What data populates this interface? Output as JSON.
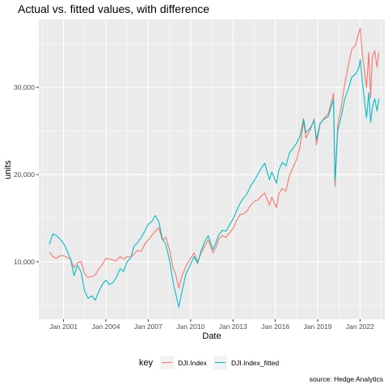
{
  "chart_data": {
    "type": "line",
    "title": "Actual vs. fitted values, with difference",
    "xlabel": "Date",
    "ylabel": "units",
    "caption": "source: Hedge Analytics",
    "x_ticks": [
      "Jan 2001",
      "Jan 2004",
      "Jan 2007",
      "Jan 2010",
      "Jan 2013",
      "Jan 2016",
      "Jan 2019",
      "Jan 2022"
    ],
    "y_ticks": [
      10000,
      20000,
      30000
    ],
    "y_tick_labels": [
      "10,000",
      "20,000",
      "30,000"
    ],
    "xlim": [
      "1999-04-01",
      "2023-10-01"
    ],
    "ylim": [
      3400,
      37800
    ],
    "grid": true,
    "legend": {
      "title": "key",
      "position": "bottom",
      "entries": [
        "DJI.Index",
        "DJI.Index_fitted"
      ]
    },
    "series": [
      {
        "name": "DJI.Index",
        "color": "#F8766D",
        "points": [
          [
            "2000-01-01",
            11100
          ],
          [
            "2000-04-01",
            10600
          ],
          [
            "2000-07-01",
            10400
          ],
          [
            "2000-10-01",
            10700
          ],
          [
            "2001-01-01",
            10700
          ],
          [
            "2001-04-01",
            10500
          ],
          [
            "2001-07-01",
            10300
          ],
          [
            "2001-10-01",
            9300
          ],
          [
            "2002-01-01",
            9900
          ],
          [
            "2002-04-01",
            10000
          ],
          [
            "2002-07-01",
            8600
          ],
          [
            "2002-10-01",
            8200
          ],
          [
            "2003-01-01",
            8300
          ],
          [
            "2003-04-01",
            8500
          ],
          [
            "2003-07-01",
            9200
          ],
          [
            "2003-10-01",
            9700
          ],
          [
            "2004-01-01",
            10400
          ],
          [
            "2004-04-01",
            10300
          ],
          [
            "2004-07-01",
            10200
          ],
          [
            "2004-10-01",
            10100
          ],
          [
            "2005-01-01",
            10600
          ],
          [
            "2005-04-01",
            10300
          ],
          [
            "2005-07-01",
            10600
          ],
          [
            "2005-10-01",
            10500
          ],
          [
            "2006-01-01",
            10900
          ],
          [
            "2006-04-01",
            11300
          ],
          [
            "2006-07-01",
            11200
          ],
          [
            "2006-10-01",
            12000
          ],
          [
            "2007-01-01",
            12500
          ],
          [
            "2007-04-01",
            13000
          ],
          [
            "2007-07-01",
            13500
          ],
          [
            "2007-10-01",
            13900
          ],
          [
            "2008-01-01",
            12500
          ],
          [
            "2008-04-01",
            12800
          ],
          [
            "2008-07-01",
            11400
          ],
          [
            "2008-10-01",
            9300
          ],
          [
            "2008-12-01",
            8700
          ],
          [
            "2009-03-01",
            7000
          ],
          [
            "2009-06-01",
            8500
          ],
          [
            "2009-09-01",
            9500
          ],
          [
            "2010-01-01",
            10400
          ],
          [
            "2010-04-01",
            11000
          ],
          [
            "2010-07-01",
            10000
          ],
          [
            "2010-10-01",
            11000
          ],
          [
            "2011-01-01",
            11800
          ],
          [
            "2011-04-01",
            12500
          ],
          [
            "2011-08-01",
            11000
          ],
          [
            "2011-10-01",
            11500
          ],
          [
            "2012-01-01",
            12600
          ],
          [
            "2012-04-01",
            13000
          ],
          [
            "2012-07-01",
            12800
          ],
          [
            "2012-10-01",
            13300
          ],
          [
            "2013-01-01",
            13800
          ],
          [
            "2013-04-01",
            14700
          ],
          [
            "2013-07-01",
            15400
          ],
          [
            "2013-10-01",
            15500
          ],
          [
            "2014-01-01",
            15800
          ],
          [
            "2014-04-01",
            16500
          ],
          [
            "2014-07-01",
            16900
          ],
          [
            "2014-10-01",
            17100
          ],
          [
            "2015-01-01",
            17500
          ],
          [
            "2015-04-01",
            17900
          ],
          [
            "2015-08-01",
            16500
          ],
          [
            "2015-10-01",
            17400
          ],
          [
            "2016-02-01",
            16200
          ],
          [
            "2016-04-01",
            17800
          ],
          [
            "2016-07-01",
            18400
          ],
          [
            "2016-10-01",
            18100
          ],
          [
            "2017-01-01",
            19900
          ],
          [
            "2017-04-01",
            20800
          ],
          [
            "2017-07-01",
            21700
          ],
          [
            "2017-10-01",
            23200
          ],
          [
            "2018-01-01",
            26100
          ],
          [
            "2018-03-01",
            24200
          ],
          [
            "2018-07-01",
            25200
          ],
          [
            "2018-10-01",
            26400
          ],
          [
            "2018-12-01",
            23400
          ],
          [
            "2019-03-01",
            25800
          ],
          [
            "2019-06-01",
            26400
          ],
          [
            "2019-10-01",
            27000
          ],
          [
            "2020-01-01",
            28500
          ],
          [
            "2020-02-15",
            29300
          ],
          [
            "2020-03-23",
            18600
          ],
          [
            "2020-06-01",
            25700
          ],
          [
            "2020-09-01",
            27800
          ],
          [
            "2020-12-01",
            30400
          ],
          [
            "2021-03-01",
            32500
          ],
          [
            "2021-06-01",
            34400
          ],
          [
            "2021-09-01",
            34800
          ],
          [
            "2021-12-01",
            36300
          ],
          [
            "2022-01-05",
            36800
          ],
          [
            "2022-03-01",
            33800
          ],
          [
            "2022-06-15",
            30000
          ],
          [
            "2022-08-15",
            34000
          ],
          [
            "2022-09-30",
            28800
          ],
          [
            "2022-11-15",
            33500
          ],
          [
            "2023-01-15",
            34200
          ],
          [
            "2023-03-15",
            32300
          ],
          [
            "2023-05-01",
            34000
          ]
        ]
      },
      {
        "name": "DJI.Index_fitted",
        "color": "#00BFC4",
        "points": [
          [
            "2000-01-01",
            12000
          ],
          [
            "2000-04-01",
            13200
          ],
          [
            "2000-07-01",
            13000
          ],
          [
            "2000-10-01",
            12600
          ],
          [
            "2001-01-01",
            12100
          ],
          [
            "2001-04-01",
            11300
          ],
          [
            "2001-07-01",
            10300
          ],
          [
            "2001-10-01",
            8400
          ],
          [
            "2002-01-01",
            9600
          ],
          [
            "2002-04-01",
            8800
          ],
          [
            "2002-07-01",
            6600
          ],
          [
            "2002-10-01",
            5800
          ],
          [
            "2003-01-01",
            6100
          ],
          [
            "2003-04-01",
            5600
          ],
          [
            "2003-07-01",
            6600
          ],
          [
            "2003-10-01",
            7400
          ],
          [
            "2004-01-01",
            7900
          ],
          [
            "2004-04-01",
            7400
          ],
          [
            "2004-07-01",
            7600
          ],
          [
            "2004-10-01",
            8200
          ],
          [
            "2005-01-01",
            9200
          ],
          [
            "2005-04-01",
            8900
          ],
          [
            "2005-07-01",
            10000
          ],
          [
            "2005-10-01",
            10400
          ],
          [
            "2006-01-01",
            11800
          ],
          [
            "2006-04-01",
            12200
          ],
          [
            "2006-07-01",
            12800
          ],
          [
            "2006-10-01",
            13500
          ],
          [
            "2007-01-01",
            14300
          ],
          [
            "2007-04-01",
            14600
          ],
          [
            "2007-07-01",
            15300
          ],
          [
            "2007-10-01",
            14600
          ],
          [
            "2008-01-01",
            12600
          ],
          [
            "2008-04-01",
            12000
          ],
          [
            "2008-07-01",
            10200
          ],
          [
            "2008-10-01",
            7800
          ],
          [
            "2008-12-01",
            6500
          ],
          [
            "2009-03-01",
            4800
          ],
          [
            "2009-06-01",
            6800
          ],
          [
            "2009-09-01",
            8600
          ],
          [
            "2010-01-01",
            9700
          ],
          [
            "2010-04-01",
            10600
          ],
          [
            "2010-07-01",
            9800
          ],
          [
            "2010-10-01",
            11300
          ],
          [
            "2011-01-01",
            12300
          ],
          [
            "2011-04-01",
            13000
          ],
          [
            "2011-08-01",
            11400
          ],
          [
            "2011-10-01",
            12000
          ],
          [
            "2012-01-01",
            13100
          ],
          [
            "2012-04-01",
            13600
          ],
          [
            "2012-07-01",
            13500
          ],
          [
            "2012-10-01",
            14200
          ],
          [
            "2013-01-01",
            14900
          ],
          [
            "2013-04-01",
            15800
          ],
          [
            "2013-07-01",
            16700
          ],
          [
            "2013-10-01",
            17300
          ],
          [
            "2014-01-01",
            17800
          ],
          [
            "2014-04-01",
            18700
          ],
          [
            "2014-07-01",
            19300
          ],
          [
            "2014-10-01",
            20000
          ],
          [
            "2015-01-01",
            20700
          ],
          [
            "2015-04-01",
            21300
          ],
          [
            "2015-08-01",
            19400
          ],
          [
            "2015-10-01",
            20300
          ],
          [
            "2016-02-01",
            19000
          ],
          [
            "2016-04-01",
            20500
          ],
          [
            "2016-07-01",
            21400
          ],
          [
            "2016-10-01",
            21000
          ],
          [
            "2017-01-01",
            22500
          ],
          [
            "2017-04-01",
            23000
          ],
          [
            "2017-07-01",
            23600
          ],
          [
            "2017-10-01",
            24400
          ],
          [
            "2018-01-01",
            26400
          ],
          [
            "2018-03-01",
            24800
          ],
          [
            "2018-07-01",
            25400
          ],
          [
            "2018-10-01",
            26200
          ],
          [
            "2018-12-01",
            24000
          ],
          [
            "2019-03-01",
            25900
          ],
          [
            "2019-06-01",
            26300
          ],
          [
            "2019-10-01",
            26700
          ],
          [
            "2020-01-01",
            28000
          ],
          [
            "2020-02-15",
            28600
          ],
          [
            "2020-03-23",
            19200
          ],
          [
            "2020-06-01",
            25000
          ],
          [
            "2020-09-01",
            26600
          ],
          [
            "2020-12-01",
            28700
          ],
          [
            "2021-03-01",
            29800
          ],
          [
            "2021-06-01",
            31200
          ],
          [
            "2021-09-01",
            31500
          ],
          [
            "2021-12-01",
            32200
          ],
          [
            "2022-01-05",
            33200
          ],
          [
            "2022-03-01",
            30600
          ],
          [
            "2022-06-15",
            26500
          ],
          [
            "2022-08-15",
            29400
          ],
          [
            "2022-09-30",
            26000
          ],
          [
            "2022-11-15",
            27700
          ],
          [
            "2023-01-15",
            28700
          ],
          [
            "2023-03-15",
            27300
          ],
          [
            "2023-05-01",
            28700
          ]
        ]
      }
    ]
  }
}
